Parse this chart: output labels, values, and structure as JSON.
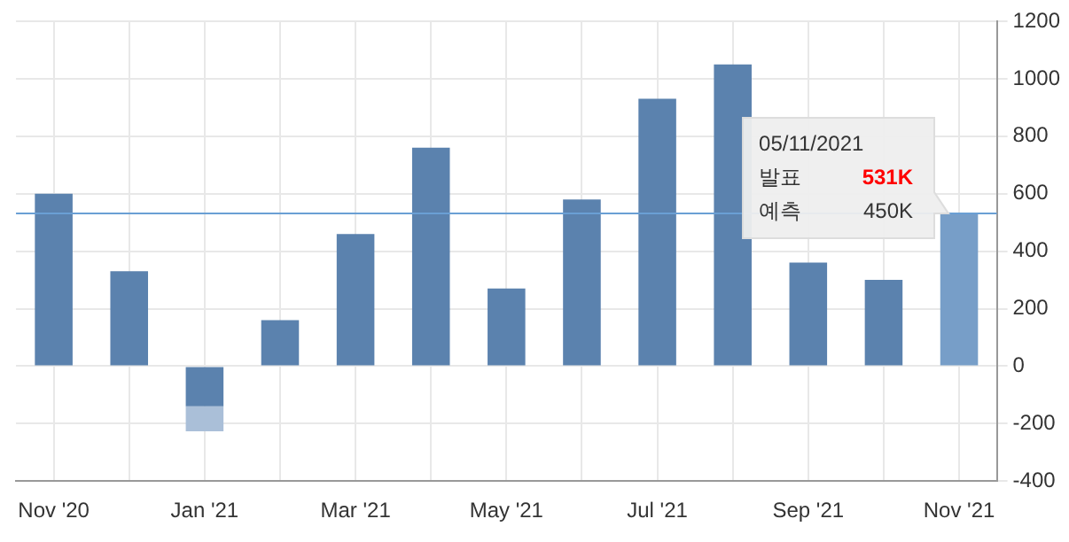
{
  "chart_data": {
    "type": "bar",
    "stacked": true,
    "categories": [
      "Nov '20",
      null,
      "Jan '21",
      null,
      "Mar '21",
      null,
      "May '21",
      null,
      "Jul '21",
      null,
      "Sep '21",
      null,
      "Nov '21"
    ],
    "series": [
      {
        "colors": [
          "#5b82ae",
          "#5b82ae",
          "#5b82ae",
          "#5b82ae",
          "#5b82ae",
          "#5b82ae",
          "#5b82ae",
          "#5b82ae",
          "#5b82ae",
          "#5b82ae",
          "#5b82ae",
          "#5b82ae",
          "#779ec8"
        ],
        "values": [
          600,
          330,
          -140,
          160,
          460,
          760,
          270,
          580,
          930,
          1050,
          360,
          300,
          531
        ]
      },
      {
        "color": "#aabfd8",
        "values": [
          null,
          null,
          -87,
          null,
          null,
          null,
          null,
          null,
          null,
          null,
          null,
          null,
          null
        ]
      }
    ],
    "ylim": [
      -400,
      1200
    ],
    "yticks": [
      -400,
      -200,
      0,
      200,
      400,
      600,
      800,
      1000,
      1200
    ],
    "grid": true,
    "ref_lines": [
      {
        "axis": "y",
        "value": 531,
        "color": "#6a9fd4"
      }
    ],
    "annotations": [
      "05/11/2021",
      "발표",
      "531K",
      "예측",
      "450K"
    ]
  }
}
